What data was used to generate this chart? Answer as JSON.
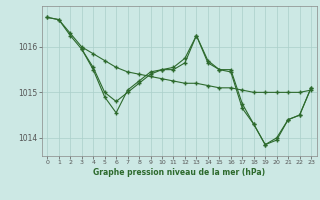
{
  "title": "Graphe pression niveau de la mer (hPa)",
  "bg_color": "#cce8e4",
  "line_color": "#2d6a2d",
  "grid_color": "#aacfca",
  "xlim": [
    -0.5,
    23.5
  ],
  "ylim": [
    1013.6,
    1016.9
  ],
  "yticks": [
    1014,
    1015,
    1016
  ],
  "xticks": [
    0,
    1,
    2,
    3,
    4,
    5,
    6,
    7,
    8,
    9,
    10,
    11,
    12,
    13,
    14,
    15,
    16,
    17,
    18,
    19,
    20,
    21,
    22,
    23
  ],
  "series1_x": [
    0,
    1,
    2,
    3,
    4,
    5,
    6,
    7,
    8,
    9,
    10,
    11,
    12,
    13,
    14,
    15,
    16,
    17,
    18,
    19,
    20,
    21,
    22,
    23
  ],
  "series1_y": [
    1016.65,
    1016.6,
    1016.3,
    1016.0,
    1015.85,
    1015.7,
    1015.55,
    1015.45,
    1015.4,
    1015.35,
    1015.3,
    1015.25,
    1015.2,
    1015.2,
    1015.15,
    1015.1,
    1015.1,
    1015.05,
    1015.0,
    1015.0,
    1015.0,
    1015.0,
    1015.0,
    1015.05
  ],
  "series2_x": [
    0,
    1,
    2,
    3,
    4,
    5,
    6,
    7,
    8,
    9,
    10,
    11,
    12,
    13,
    14,
    15,
    16,
    17,
    18,
    19,
    20,
    21,
    22,
    23
  ],
  "series2_y": [
    1016.65,
    1016.6,
    1016.25,
    1015.95,
    1015.5,
    1014.9,
    1014.55,
    1015.05,
    1015.25,
    1015.45,
    1015.5,
    1015.55,
    1015.75,
    1016.25,
    1015.7,
    1015.5,
    1015.5,
    1014.75,
    1014.3,
    1013.85,
    1014.0,
    1014.4,
    1014.5,
    1015.1
  ],
  "series3_x": [
    3,
    4,
    5,
    6,
    7,
    8,
    9,
    10,
    11,
    12,
    13,
    14,
    15,
    16,
    17,
    18,
    19,
    20,
    21,
    22,
    23
  ],
  "series3_y": [
    1015.95,
    1015.55,
    1015.0,
    1014.8,
    1015.0,
    1015.2,
    1015.4,
    1015.5,
    1015.5,
    1015.65,
    1016.25,
    1015.65,
    1015.5,
    1015.45,
    1014.65,
    1014.3,
    1013.85,
    1013.95,
    1014.4,
    1014.5,
    1015.1
  ]
}
